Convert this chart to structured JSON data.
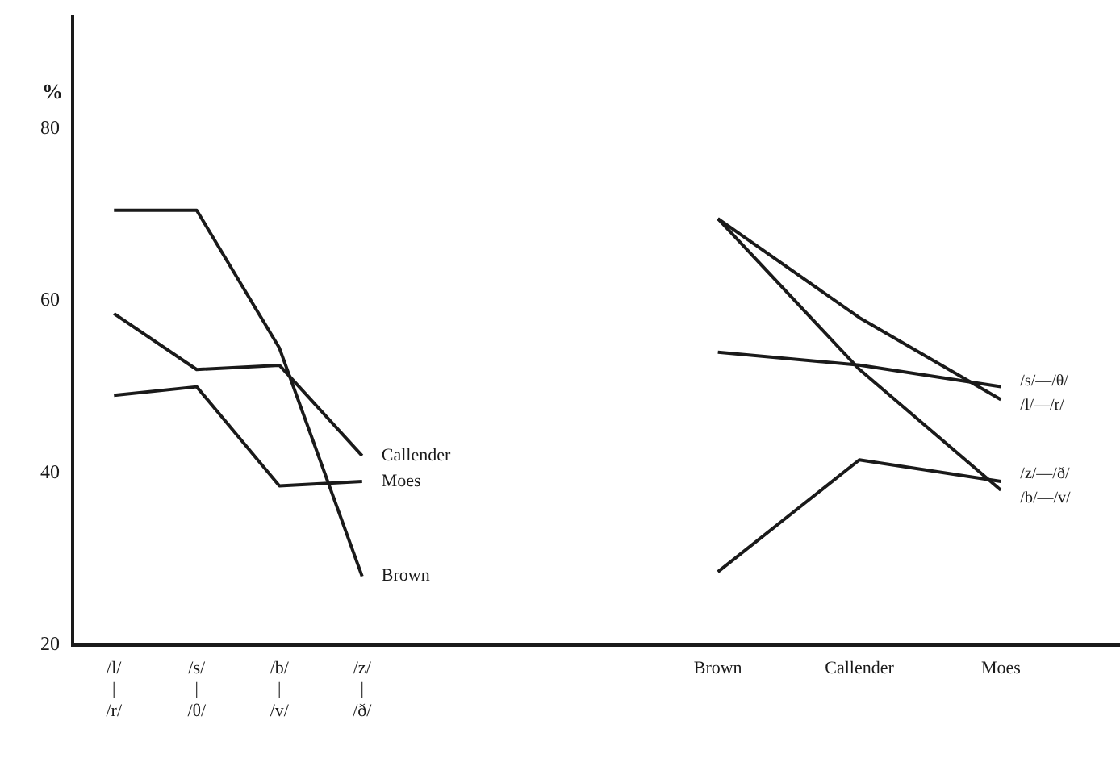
{
  "chart_data": [
    {
      "type": "line",
      "ylabel": "%",
      "categories": [
        "/l/\n|\n/r/",
        "/s/\n|\n/θ/",
        "/b/\n|\n/v/",
        "/z/\n|\n/ð/"
      ],
      "series": [
        {
          "name": "Callender",
          "color": "#1a1a1a",
          "values": [
            58.5,
            52,
            52.5,
            42
          ]
        },
        {
          "name": "Moes",
          "color": "#1a1a1a",
          "values": [
            49,
            50,
            38.5,
            39
          ]
        },
        {
          "name": "Brown",
          "color": "#1a1a1a",
          "values": [
            70.5,
            70.5,
            54.5,
            28
          ]
        }
      ],
      "ylim": [
        20,
        93
      ],
      "yticks": [
        20,
        40,
        60,
        80
      ],
      "grid": false,
      "legend": false,
      "marker": "none",
      "line_style": "solid"
    },
    {
      "type": "line",
      "categories": [
        "Brown",
        "Callender",
        "Moes"
      ],
      "series": [
        {
          "name": "/s/—/θ/",
          "color": "#1a1a1a",
          "values": [
            54,
            52.5,
            50
          ]
        },
        {
          "name": "/l/—/r/",
          "color": "#1a1a1a",
          "values": [
            69.5,
            58,
            48.5
          ]
        },
        {
          "name": "/z/—/ð/",
          "color": "#1a1a1a",
          "values": [
            28.5,
            41.5,
            39
          ]
        },
        {
          "name": "/b/—/v/",
          "color": "#1a1a1a",
          "values": [
            69.5,
            52,
            38
          ]
        }
      ],
      "ylim": [
        20,
        80
      ],
      "yticks": [
        20,
        40,
        60,
        80
      ],
      "tick_labels": "x",
      "grid": false,
      "legend": false,
      "marker": "none",
      "line_style": "solid"
    }
  ]
}
